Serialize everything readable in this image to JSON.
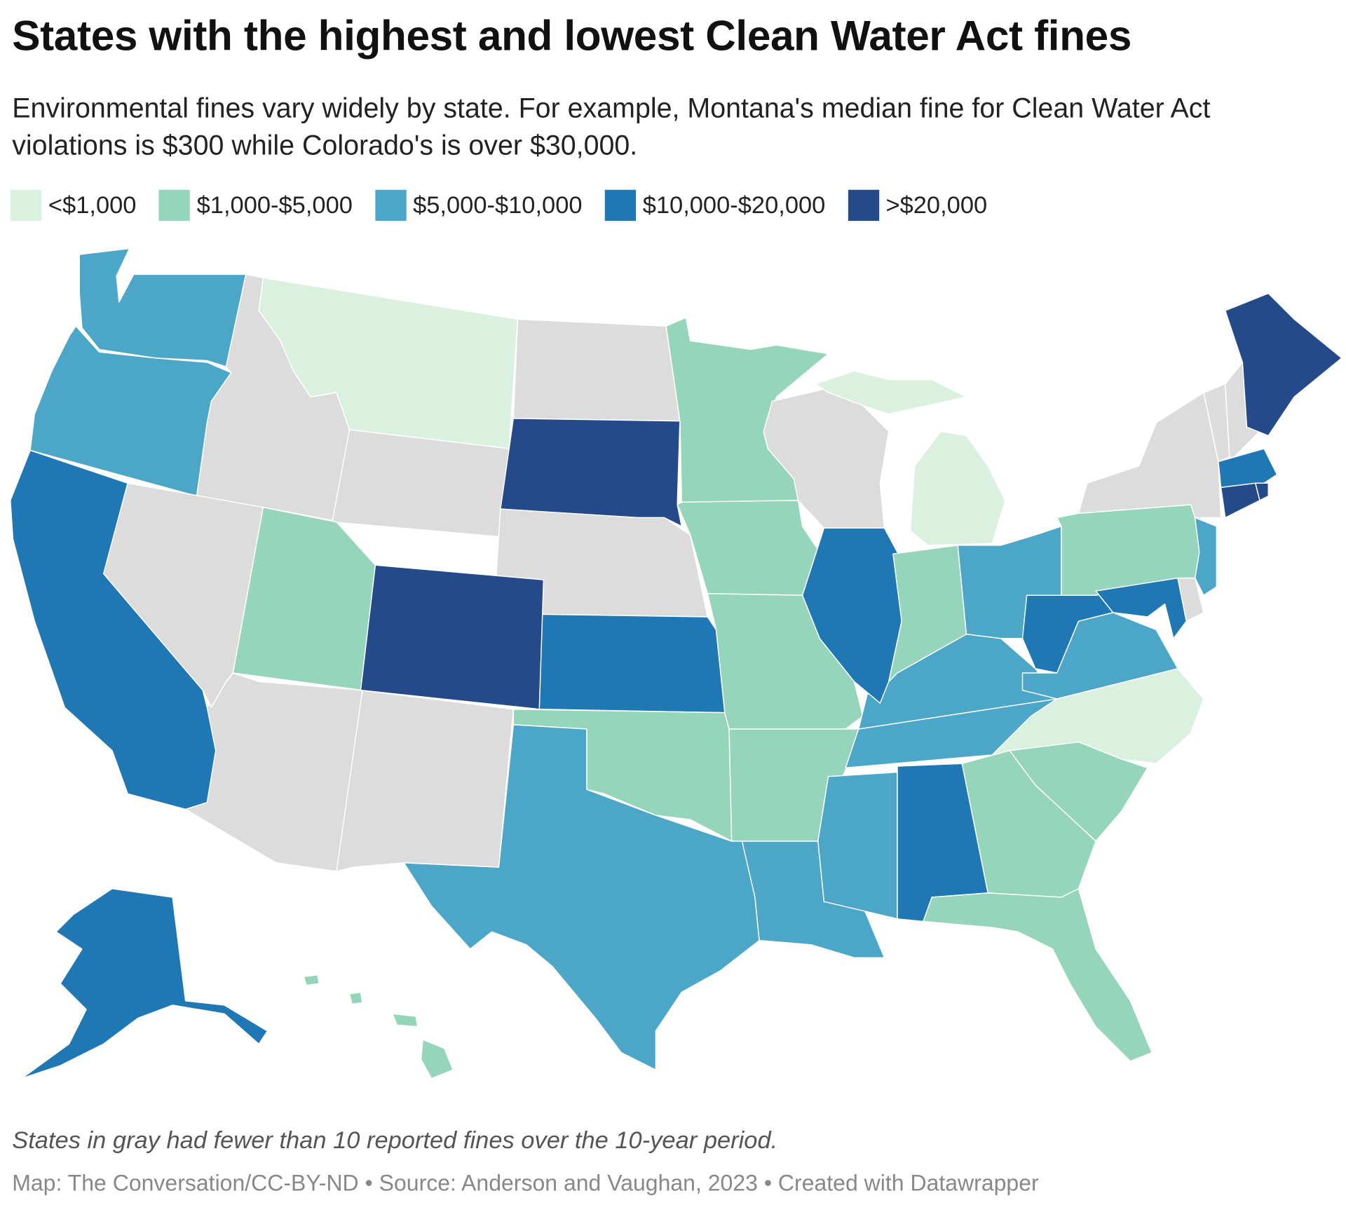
{
  "title": "States with the highest and lowest Clean Water Act fines",
  "subtitle": "Environmental fines vary widely by state. For example, Montana's median fine for Clean Water Act violations is $300 while Colorado's is over $30,000.",
  "legend": [
    {
      "label": "<$1,000",
      "color": "#dbf1df"
    },
    {
      "label": "$1,000-$5,000",
      "color": "#94d5bb"
    },
    {
      "label": "$5,000-$10,000",
      "color": "#4ba6c8"
    },
    {
      "label": "$10,000-$20,000",
      "color": "#1f78b4"
    },
    {
      "label": ">$20,000",
      "color": "#254a8a"
    }
  ],
  "no_data_color": "#dcdcdc",
  "state_categories": {
    "WA": 2,
    "OR": 2,
    "CA": 3,
    "NV": null,
    "ID": null,
    "MT": 0,
    "WY": null,
    "UT": 1,
    "CO": 4,
    "AZ": null,
    "NM": null,
    "ND": null,
    "SD": 4,
    "NE": null,
    "KS": 3,
    "OK": 1,
    "TX": 2,
    "MN": 1,
    "IA": 1,
    "MO": 1,
    "AR": 1,
    "LA": 2,
    "WI": null,
    "IL": 3,
    "MI": 0,
    "IN": 1,
    "OH": 2,
    "KY": 2,
    "TN": 2,
    "MS": 2,
    "AL": 3,
    "GA": 1,
    "FL": 1,
    "SC": 1,
    "NC": 0,
    "VA": 2,
    "WV": 3,
    "MD": 3,
    "DE": null,
    "PA": 1,
    "NJ": 2,
    "NY": null,
    "CT": 4,
    "RI": 4,
    "MA": 3,
    "VT": null,
    "NH": null,
    "ME": 4,
    "AK": 3,
    "HI": 1
  },
  "note": "States in gray had fewer than 10 reported fines over the 10-year period.",
  "footer": "Map: The Conversation/CC-BY-ND • Source: Anderson and Vaughan, 2023 • Created with Datawrapper"
}
